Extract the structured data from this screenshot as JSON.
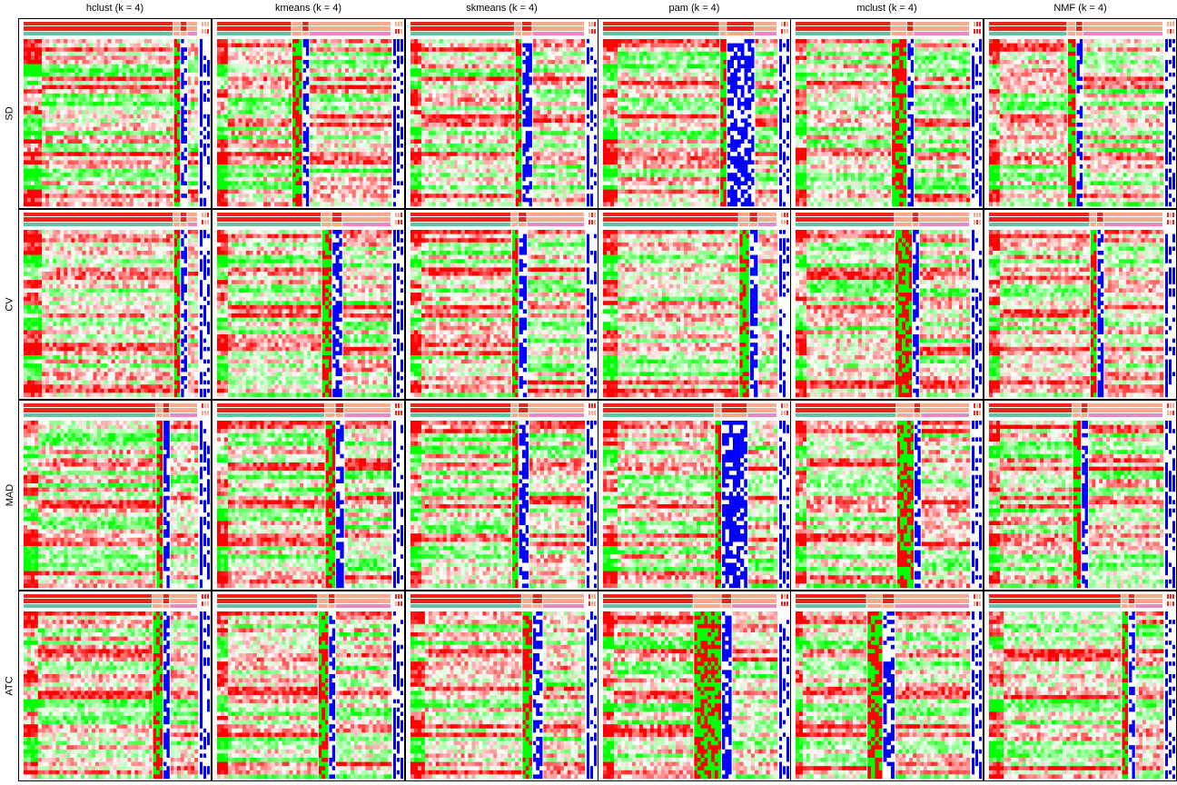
{
  "chart_data": {
    "type": "heatmap",
    "description_kind": "consensus clustering heatmap grid",
    "columns": [
      "hclust (k = 4)",
      "kmeans (k = 4)",
      "skmeans (k = 4)",
      "pam (k = 4)",
      "mclust (k = 4)",
      "NMF (k = 4)"
    ],
    "rows": [
      "SD",
      "CV",
      "MAD",
      "ATC"
    ],
    "colors": {
      "high": "#ff0000",
      "mid": "#ffffff",
      "low": "#00ff00",
      "class_marker": "#0000ff",
      "annotation_dark": "#e8261e",
      "annotation_light": "#f9a98e",
      "annotation_teal": "#66c2a5",
      "annotation_pink": "#e78ac3",
      "panel_border": "#000000"
    },
    "panels": [
      {
        "row": "SD",
        "column": "hclust (k = 4)",
        "groups": [
          0.86,
          0.04,
          0.04,
          0.06
        ]
      },
      {
        "row": "SD",
        "column": "kmeans (k = 4)",
        "groups": [
          0.43,
          0.06,
          0.04,
          0.47
        ]
      },
      {
        "row": "SD",
        "column": "skmeans (k = 4)",
        "groups": [
          0.6,
          0.04,
          0.06,
          0.3
        ]
      },
      {
        "row": "SD",
        "column": "pam (k = 4)",
        "groups": [
          0.67,
          0.04,
          0.16,
          0.13
        ]
      },
      {
        "row": "SD",
        "column": "mclust (k = 4)",
        "groups": [
          0.55,
          0.09,
          0.04,
          0.32
        ]
      },
      {
        "row": "SD",
        "column": "NMF (k = 4)",
        "groups": [
          0.45,
          0.05,
          0.04,
          0.46
        ]
      },
      {
        "row": "CV",
        "column": "hclust (k = 4)",
        "groups": [
          0.86,
          0.04,
          0.04,
          0.06
        ]
      },
      {
        "row": "CV",
        "column": "kmeans (k = 4)",
        "groups": [
          0.6,
          0.06,
          0.06,
          0.28
        ]
      },
      {
        "row": "CV",
        "column": "skmeans (k = 4)",
        "groups": [
          0.58,
          0.04,
          0.05,
          0.33
        ]
      },
      {
        "row": "CV",
        "column": "pam (k = 4)",
        "groups": [
          0.78,
          0.06,
          0.05,
          0.11
        ]
      },
      {
        "row": "CV",
        "column": "mclust (k = 4)",
        "groups": [
          0.57,
          0.1,
          0.04,
          0.29
        ]
      },
      {
        "row": "CV",
        "column": "NMF (k = 4)",
        "groups": [
          0.58,
          0.04,
          0.04,
          0.34
        ]
      },
      {
        "row": "MAD",
        "column": "hclust (k = 4)",
        "groups": [
          0.76,
          0.04,
          0.04,
          0.16
        ]
      },
      {
        "row": "MAD",
        "column": "kmeans (k = 4)",
        "groups": [
          0.62,
          0.06,
          0.05,
          0.27
        ]
      },
      {
        "row": "MAD",
        "column": "skmeans (k = 4)",
        "groups": [
          0.58,
          0.04,
          0.06,
          0.32
        ]
      },
      {
        "row": "MAD",
        "column": "pam (k = 4)",
        "groups": [
          0.64,
          0.04,
          0.15,
          0.17
        ]
      },
      {
        "row": "MAD",
        "column": "mclust (k = 4)",
        "groups": [
          0.58,
          0.1,
          0.04,
          0.28
        ]
      },
      {
        "row": "MAD",
        "column": "NMF (k = 4)",
        "groups": [
          0.48,
          0.05,
          0.04,
          0.43
        ]
      },
      {
        "row": "ATC",
        "column": "hclust (k = 4)",
        "groups": [
          0.74,
          0.06,
          0.04,
          0.16
        ]
      },
      {
        "row": "ATC",
        "column": "kmeans (k = 4)",
        "groups": [
          0.58,
          0.06,
          0.04,
          0.32
        ]
      },
      {
        "row": "ATC",
        "column": "skmeans (k = 4)",
        "groups": [
          0.64,
          0.06,
          0.06,
          0.24
        ]
      },
      {
        "row": "ATC",
        "column": "pam (k = 4)",
        "groups": [
          0.52,
          0.16,
          0.06,
          0.26
        ]
      },
      {
        "row": "ATC",
        "column": "mclust (k = 4)",
        "groups": [
          0.41,
          0.09,
          0.07,
          0.43
        ]
      },
      {
        "row": "ATC",
        "column": "NMF (k = 4)",
        "groups": [
          0.76,
          0.04,
          0.04,
          0.16
        ]
      }
    ]
  }
}
